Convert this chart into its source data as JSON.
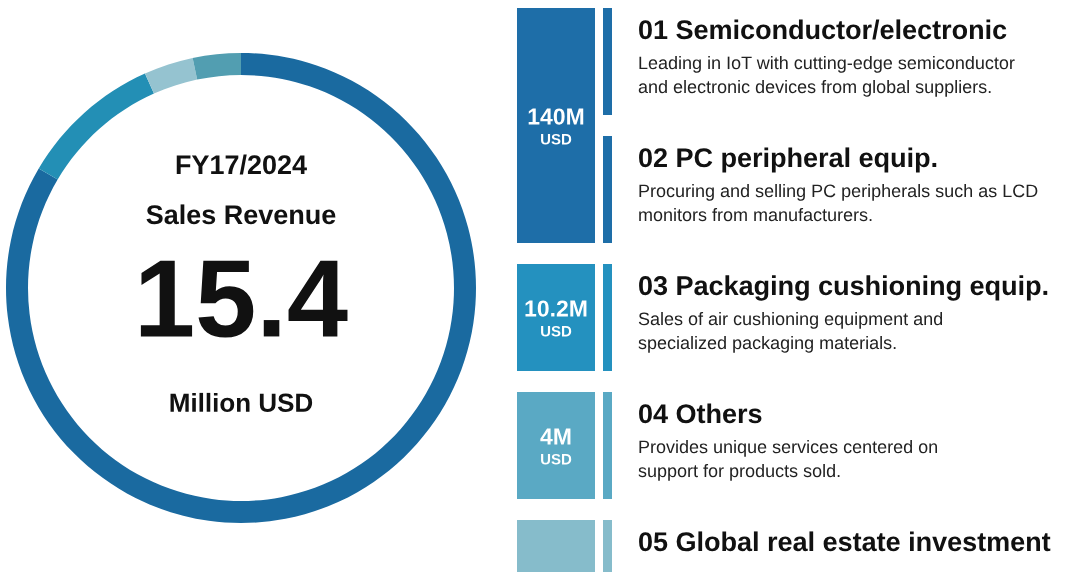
{
  "chart_data": [
    {
      "type": "donut",
      "title": "FY17/2024",
      "subtitle": "Sales Revenue",
      "annotations": [
        "15.4",
        "Million USD"
      ],
      "categories": [
        null,
        null,
        null,
        null
      ],
      "values": [
        83.5,
        9.8,
        3.4,
        3.3
      ],
      "colors": [
        "#1a6aa0",
        "#238fb5",
        "#95c3d0",
        "#529eb1"
      ]
    },
    {
      "type": "other",
      "categories": [
        "01 Semiconductor/electronic",
        "02 PC peripheral equip.",
        "03 Packaging cushioning equip.",
        "04 Others",
        "05 Global real estate investment"
      ],
      "annotations": [
        "Leading in IoT with cutting-edge semiconductor\nand electronic devices from global suppliers.",
        "Procuring and selling PC peripherals such as LCD\nmonitors from manufacturers.",
        "Sales of air cushioning equipment and\nspecialized packaging materials.",
        "Provides unique services centered on\nsupport for products sold."
      ],
      "value_labels": [
        "140M USD",
        null,
        "10.2M USD",
        "4M USD",
        null
      ],
      "colors": [
        "#1e6ea8",
        "#1e6ea8",
        "#2491bf",
        "#5aa9c4",
        "#86bccb"
      ]
    }
  ]
}
